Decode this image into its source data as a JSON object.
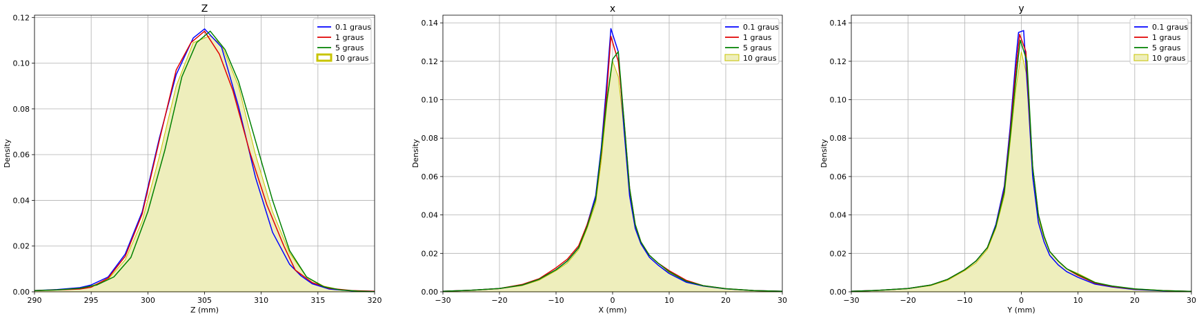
{
  "figure": {
    "panels": [
      "Z",
      "x",
      "y"
    ]
  },
  "chart_data": [
    {
      "type": "line",
      "title": "Z",
      "xlabel": "Z (mm)",
      "ylabel": "Density",
      "xlim": [
        290,
        320
      ],
      "ylim": [
        0,
        0.121
      ],
      "xticks": [
        290,
        295,
        300,
        305,
        310,
        315,
        320
      ],
      "yticks": [
        0.0,
        0.02,
        0.04,
        0.06,
        0.08,
        0.1,
        0.12
      ],
      "ytick_labels": [
        "0.00",
        "0.02",
        "0.04",
        "0.06",
        "0.08",
        "0.10",
        "0.12"
      ],
      "grid": true,
      "legend_position": "top-right",
      "series": [
        {
          "name": "0.1 graus",
          "color": "#0000ff",
          "style": "line",
          "x": [
            290,
            292,
            294,
            295,
            296.5,
            298,
            299.5,
            301,
            302.5,
            304,
            305,
            306.5,
            308,
            309.5,
            311,
            312.5,
            313.5,
            314.5,
            316,
            318,
            320
          ],
          "y": [
            0.0005,
            0.001,
            0.0018,
            0.003,
            0.0065,
            0.0165,
            0.035,
            0.067,
            0.095,
            0.111,
            0.115,
            0.107,
            0.081,
            0.05,
            0.026,
            0.012,
            0.007,
            0.0035,
            0.0012,
            0.0004,
            0.0002
          ]
        },
        {
          "name": "1 graus",
          "color": "#e00000",
          "style": "line",
          "x": [
            290,
            292,
            294,
            295,
            296.5,
            298,
            299.5,
            301,
            302.5,
            303.8,
            305,
            306.3,
            307.5,
            309,
            310.5,
            312,
            313,
            314.5,
            316,
            318,
            320
          ],
          "y": [
            0.0005,
            0.0008,
            0.0012,
            0.002,
            0.006,
            0.0155,
            0.034,
            0.066,
            0.097,
            0.109,
            0.114,
            0.104,
            0.088,
            0.061,
            0.038,
            0.02,
            0.0095,
            0.004,
            0.0015,
            0.0005,
            0.0002
          ]
        },
        {
          "name": "5 graus",
          "color": "#008000",
          "style": "line",
          "x": [
            290,
            292,
            294,
            295.5,
            297,
            298.5,
            300,
            301.5,
            303,
            304.3,
            305.5,
            306.8,
            308,
            309.5,
            311,
            312.5,
            314,
            315.5,
            317,
            318.5,
            320
          ],
          "y": [
            0.0005,
            0.0008,
            0.0015,
            0.003,
            0.0065,
            0.015,
            0.035,
            0.062,
            0.094,
            0.109,
            0.114,
            0.106,
            0.092,
            0.066,
            0.04,
            0.018,
            0.0065,
            0.0022,
            0.0008,
            0.0003,
            0.0001
          ]
        },
        {
          "name": "10 graus",
          "color": "#c8c400",
          "fill": "#eeeebc",
          "style": "filled",
          "x": [
            290,
            292,
            294,
            295,
            296.5,
            298,
            299.5,
            301,
            302.5,
            304,
            305.5,
            306.5,
            308,
            309.5,
            311,
            312.5,
            314,
            315.5,
            317,
            318.5,
            320
          ],
          "y": [
            0.0005,
            0.001,
            0.0015,
            0.0025,
            0.0055,
            0.014,
            0.031,
            0.059,
            0.09,
            0.109,
            0.112,
            0.108,
            0.09,
            0.06,
            0.035,
            0.017,
            0.0065,
            0.0025,
            0.0009,
            0.0003,
            0.0001
          ]
        }
      ]
    },
    {
      "type": "line",
      "title": "x",
      "xlabel": "X (mm)",
      "ylabel": "Density",
      "xlim": [
        -30,
        30
      ],
      "ylim": [
        0,
        0.144
      ],
      "xticks": [
        -30,
        -20,
        -10,
        0,
        10,
        20,
        30
      ],
      "yticks": [
        0.0,
        0.02,
        0.04,
        0.06,
        0.08,
        0.1,
        0.12,
        0.14
      ],
      "ytick_labels": [
        "0.00",
        "0.02",
        "0.04",
        "0.06",
        "0.08",
        "0.10",
        "0.12",
        "0.14"
      ],
      "grid": true,
      "legend_position": "top-right",
      "series": [
        {
          "name": "0.1 graus",
          "color": "#0000ff",
          "style": "line",
          "x": [
            -30,
            -25,
            -20,
            -16,
            -13,
            -10,
            -8,
            -6,
            -4.5,
            -3,
            -2,
            -1,
            -0.3,
            1,
            2,
            3,
            4,
            5,
            6.5,
            8,
            10,
            13,
            16,
            20,
            25,
            30
          ],
          "y": [
            0.0003,
            0.0008,
            0.0017,
            0.0035,
            0.0065,
            0.0115,
            0.016,
            0.023,
            0.035,
            0.05,
            0.075,
            0.11,
            0.137,
            0.125,
            0.085,
            0.05,
            0.033,
            0.025,
            0.018,
            0.014,
            0.0095,
            0.005,
            0.003,
            0.0015,
            0.0006,
            0.0003
          ]
        },
        {
          "name": "1 graus",
          "color": "#e00000",
          "style": "line",
          "x": [
            -30,
            -25,
            -20,
            -16,
            -13,
            -10,
            -8,
            -6,
            -4.5,
            -3,
            -2,
            -1,
            -0.3,
            1,
            2,
            3,
            4,
            5,
            6.5,
            8,
            10,
            13,
            16,
            20,
            25,
            30
          ],
          "y": [
            0.0003,
            0.0008,
            0.0017,
            0.0038,
            0.0068,
            0.0125,
            0.017,
            0.024,
            0.035,
            0.048,
            0.072,
            0.105,
            0.133,
            0.12,
            0.09,
            0.054,
            0.035,
            0.026,
            0.019,
            0.015,
            0.011,
            0.006,
            0.0032,
            0.0016,
            0.0006,
            0.0003
          ]
        },
        {
          "name": "5 graus",
          "color": "#008000",
          "style": "line",
          "x": [
            -30,
            -25,
            -20,
            -16,
            -13,
            -10,
            -8,
            -6,
            -4.5,
            -3,
            -2,
            -1,
            0,
            1,
            2,
            3,
            4,
            5,
            6.5,
            8,
            10,
            13,
            16,
            20,
            25,
            30
          ],
          "y": [
            0.0003,
            0.0008,
            0.0017,
            0.0035,
            0.0065,
            0.0115,
            0.016,
            0.023,
            0.034,
            0.048,
            0.073,
            0.1,
            0.121,
            0.125,
            0.09,
            0.054,
            0.035,
            0.026,
            0.019,
            0.015,
            0.0105,
            0.0055,
            0.0032,
            0.0016,
            0.0006,
            0.0003
          ]
        },
        {
          "name": "10 graus",
          "color": "#c8c400",
          "fill": "#eeeebc",
          "style": "filled",
          "x": [
            -30,
            -25,
            -20,
            -16,
            -13,
            -10,
            -8,
            -6,
            -4.5,
            -3,
            -2,
            -1,
            0,
            1,
            2,
            3,
            4,
            5,
            6.5,
            8,
            10,
            13,
            16,
            20,
            25,
            30
          ],
          "y": [
            0.0003,
            0.0008,
            0.0016,
            0.0032,
            0.006,
            0.011,
            0.015,
            0.022,
            0.033,
            0.046,
            0.068,
            0.098,
            0.12,
            0.112,
            0.085,
            0.052,
            0.034,
            0.025,
            0.018,
            0.014,
            0.01,
            0.0055,
            0.003,
            0.0015,
            0.0006,
            0.0003
          ]
        }
      ]
    },
    {
      "type": "line",
      "title": "y",
      "xlabel": "Y (mm)",
      "ylabel": "Density",
      "xlim": [
        -30,
        30
      ],
      "ylim": [
        0,
        0.144
      ],
      "xticks": [
        -30,
        -20,
        -10,
        0,
        10,
        20,
        30
      ],
      "yticks": [
        0.0,
        0.02,
        0.04,
        0.06,
        0.08,
        0.1,
        0.12,
        0.14
      ],
      "ytick_labels": [
        "0.00",
        "0.02",
        "0.04",
        "0.06",
        "0.08",
        "0.10",
        "0.12",
        "0.14"
      ],
      "grid": true,
      "legend_position": "top-right",
      "series": [
        {
          "name": "0.1 graus",
          "color": "#0000ff",
          "style": "line",
          "x": [
            -30,
            -25,
            -20,
            -16,
            -13,
            -10,
            -8,
            -6,
            -4.5,
            -3,
            -2,
            -1,
            -0.5,
            0.4,
            1.2,
            2,
            3,
            4,
            5,
            6.5,
            8,
            10,
            13,
            16,
            20,
            25,
            30
          ],
          "y": [
            0.0003,
            0.0008,
            0.0017,
            0.0035,
            0.0065,
            0.0115,
            0.016,
            0.023,
            0.035,
            0.055,
            0.085,
            0.12,
            0.135,
            0.136,
            0.1,
            0.06,
            0.036,
            0.026,
            0.019,
            0.014,
            0.0105,
            0.0075,
            0.004,
            0.0025,
            0.0012,
            0.0005,
            0.0002
          ]
        },
        {
          "name": "1 graus",
          "color": "#e00000",
          "style": "line",
          "x": [
            -30,
            -25,
            -20,
            -16,
            -13,
            -10,
            -8,
            -6,
            -4.5,
            -3,
            -2,
            -1,
            -0.3,
            0.8,
            2,
            3,
            4,
            5,
            6.5,
            8,
            10,
            13,
            16,
            20,
            25,
            30
          ],
          "y": [
            0.0003,
            0.0008,
            0.0017,
            0.0035,
            0.0065,
            0.0115,
            0.016,
            0.023,
            0.034,
            0.053,
            0.082,
            0.115,
            0.134,
            0.125,
            0.065,
            0.04,
            0.029,
            0.021,
            0.016,
            0.012,
            0.0085,
            0.0045,
            0.0028,
            0.0014,
            0.0006,
            0.0002
          ]
        },
        {
          "name": "5 graus",
          "color": "#008000",
          "style": "line",
          "x": [
            -30,
            -25,
            -20,
            -16,
            -13,
            -10,
            -8,
            -6,
            -4.5,
            -3,
            -2,
            -1,
            -0.2,
            1,
            2,
            3,
            4,
            5,
            6.5,
            8,
            10,
            13,
            16,
            20,
            25,
            30
          ],
          "y": [
            0.0003,
            0.0008,
            0.0017,
            0.0035,
            0.0065,
            0.0115,
            0.016,
            0.023,
            0.034,
            0.052,
            0.08,
            0.11,
            0.131,
            0.12,
            0.065,
            0.04,
            0.029,
            0.021,
            0.016,
            0.012,
            0.009,
            0.0048,
            0.003,
            0.0015,
            0.0006,
            0.0002
          ]
        },
        {
          "name": "10 graus",
          "color": "#c8c400",
          "fill": "#eeeebc",
          "style": "filled",
          "x": [
            -30,
            -25,
            -20,
            -16,
            -13,
            -10,
            -8,
            -6,
            -4.5,
            -3,
            -2,
            -1,
            0,
            1,
            2,
            3,
            4,
            5,
            6.5,
            8,
            10,
            13,
            16,
            20,
            25,
            30
          ],
          "y": [
            0.0003,
            0.0008,
            0.0016,
            0.0032,
            0.006,
            0.011,
            0.015,
            0.022,
            0.033,
            0.05,
            0.077,
            0.105,
            0.125,
            0.112,
            0.06,
            0.038,
            0.028,
            0.021,
            0.016,
            0.012,
            0.0095,
            0.005,
            0.003,
            0.0015,
            0.0006,
            0.0002
          ]
        }
      ]
    }
  ]
}
